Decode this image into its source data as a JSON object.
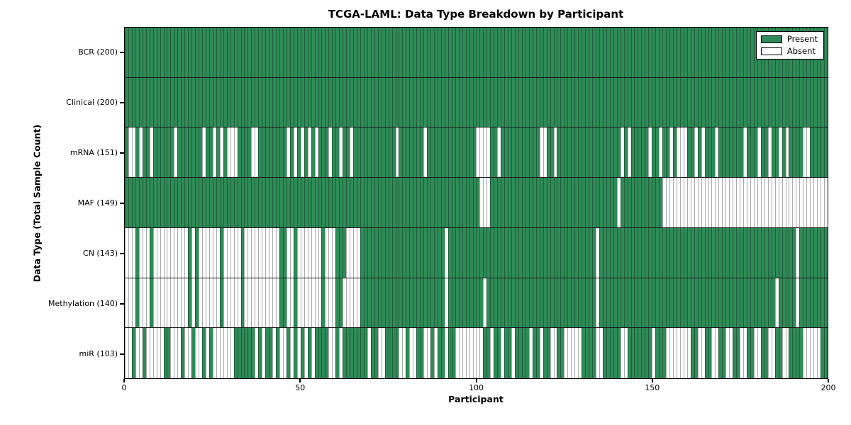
{
  "chart_data": {
    "type": "heatmap",
    "title": "TCGA-LAML: Data Type Breakdown by Participant",
    "xlabel": "Participant",
    "ylabel": "Data Type (Total Sample Count)",
    "n_participants": 200,
    "x_range": [
      0,
      200
    ],
    "x_ticks": [
      0,
      50,
      100,
      150,
      200
    ],
    "legend": [
      "Present",
      "Absent"
    ],
    "legend_position": "upper right",
    "grid": "row separators only",
    "colors": {
      "present": "#2E8B57",
      "absent": "#FFFFFF",
      "cell_edge": "rgba(0,0,0,0.32)",
      "frame": "#000000"
    },
    "rows": [
      {
        "label": "BCR (200)",
        "name": "BCR",
        "present_total": 200,
        "absent": []
      },
      {
        "label": "Clinical (200)",
        "name": "Clinical",
        "present_total": 200,
        "absent": []
      },
      {
        "label": "mRNA (151)",
        "name": "mRNA",
        "present_total": 151,
        "absent": [
          1,
          2,
          4,
          7,
          14,
          22,
          25,
          27,
          29,
          30,
          31,
          36,
          37,
          46,
          48,
          50,
          52,
          54,
          58,
          61,
          64,
          77,
          85,
          100,
          101,
          102,
          103,
          106,
          118,
          119,
          122,
          141,
          143,
          149,
          152,
          155,
          157,
          158,
          159,
          162,
          164,
          168,
          176,
          180,
          183,
          186,
          188,
          193,
          194
        ]
      },
      {
        "label": "MAF (149)",
        "name": "MAF",
        "present_total": 149,
        "absent": [
          101,
          102,
          103,
          140,
          153,
          154,
          155,
          156,
          157,
          158,
          159,
          160,
          161,
          162,
          163,
          164,
          165,
          166,
          167,
          168,
          169,
          170,
          171,
          172,
          173,
          174,
          175,
          176,
          177,
          178,
          179,
          180,
          181,
          182,
          183,
          184,
          185,
          186,
          187,
          188,
          189,
          190,
          191,
          192,
          193,
          194,
          195,
          196,
          197,
          198,
          199
        ]
      },
      {
        "label": "CN (143)",
        "name": "CN",
        "present_total": 143,
        "absent": [
          0,
          1,
          2,
          4,
          5,
          6,
          8,
          9,
          10,
          11,
          12,
          13,
          14,
          15,
          16,
          17,
          19,
          21,
          22,
          23,
          24,
          25,
          26,
          28,
          29,
          30,
          31,
          32,
          34,
          35,
          36,
          37,
          38,
          39,
          40,
          41,
          42,
          43,
          46,
          47,
          49,
          50,
          51,
          52,
          53,
          54,
          55,
          57,
          58,
          59,
          63,
          64,
          65,
          66,
          91,
          134,
          191
        ]
      },
      {
        "label": "Methylation (140)",
        "name": "Methylation",
        "present_total": 140,
        "absent": [
          0,
          1,
          2,
          4,
          5,
          6,
          8,
          9,
          10,
          11,
          12,
          13,
          14,
          15,
          16,
          17,
          19,
          21,
          22,
          23,
          24,
          25,
          26,
          28,
          29,
          30,
          31,
          32,
          34,
          35,
          36,
          37,
          38,
          39,
          40,
          41,
          42,
          43,
          46,
          47,
          49,
          50,
          51,
          52,
          53,
          54,
          55,
          57,
          58,
          59,
          62,
          63,
          64,
          65,
          66,
          91,
          102,
          134,
          185,
          191
        ]
      },
      {
        "label": "miR (103)",
        "name": "miR",
        "present_total": 103,
        "absent": [
          0,
          1,
          3,
          4,
          6,
          7,
          8,
          9,
          10,
          13,
          14,
          15,
          17,
          18,
          20,
          21,
          23,
          25,
          26,
          27,
          28,
          29,
          30,
          37,
          39,
          42,
          44,
          45,
          47,
          49,
          51,
          53,
          58,
          59,
          61,
          69,
          72,
          73,
          78,
          79,
          81,
          82,
          85,
          86,
          88,
          91,
          94,
          95,
          96,
          97,
          98,
          99,
          100,
          101,
          104,
          107,
          110,
          115,
          118,
          121,
          122,
          125,
          126,
          127,
          128,
          129,
          134,
          135,
          141,
          142,
          150,
          154,
          155,
          156,
          157,
          158,
          159,
          160,
          163,
          164,
          167,
          168,
          171,
          172,
          175,
          176,
          179,
          180,
          183,
          184,
          187,
          188,
          193,
          194,
          195,
          196,
          197
        ]
      }
    ]
  }
}
